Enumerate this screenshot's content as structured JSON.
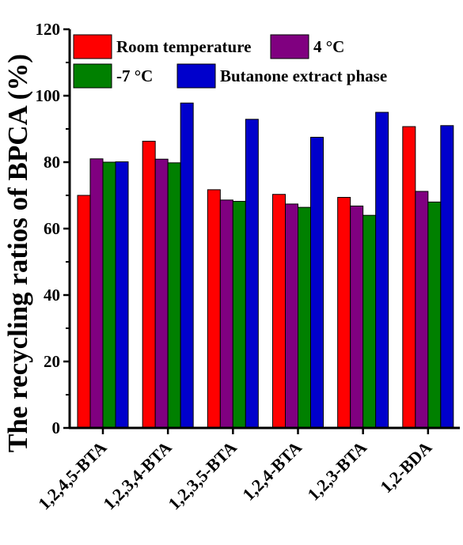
{
  "chart_data": {
    "type": "bar",
    "ylabel": "The recycling ratios of BPCA (%)",
    "ylim": [
      0,
      120
    ],
    "yticks": [
      0,
      20,
      40,
      60,
      80,
      100,
      120
    ],
    "grid": false,
    "legend_position": "top",
    "categories": [
      "1,2,4,5-BTA",
      "1,2,3,4-BTA",
      "1,2,3,5-BTA",
      "1,2,4-BTA",
      "1,2,3-BTA",
      "1,2-BDA"
    ],
    "series": [
      {
        "name": "Room temperature",
        "color": "#ff0000",
        "values": [
          70,
          86.3,
          71.7,
          70.3,
          69.4,
          90.7
        ]
      },
      {
        "name": "4 °C",
        "color": "#800080",
        "values": [
          81,
          80.9,
          68.6,
          67.4,
          66.8,
          71.2
        ]
      },
      {
        "name": "-7 °C",
        "color": "#008000",
        "values": [
          80,
          79.8,
          68.2,
          66.4,
          64.0,
          68.0
        ]
      },
      {
        "name": "Butanone extract phase",
        "color": "#0000cc",
        "values": [
          80.1,
          97.8,
          92.9,
          87.5,
          95.0,
          91.0
        ]
      }
    ]
  }
}
